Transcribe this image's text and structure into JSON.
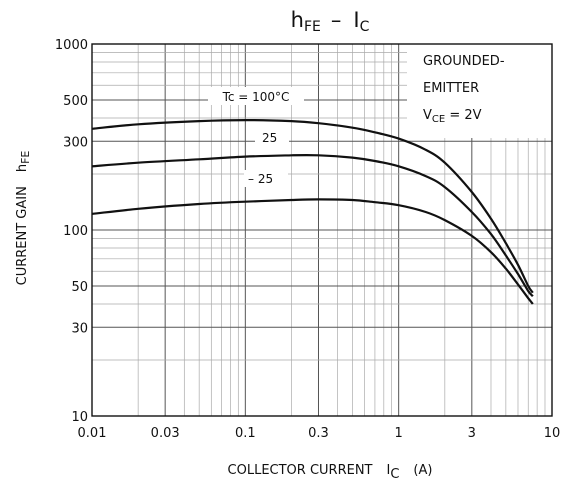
{
  "chart_data": {
    "type": "line",
    "title": {
      "main": "h",
      "main_sub": "FE",
      "sep": "–",
      "var": "I",
      "var_sub": "C"
    },
    "xlabel": {
      "pre": "COLLECTOR CURRENT",
      "var": "I",
      "var_sub": "C",
      "unit": "(A)"
    },
    "ylabel": {
      "pre": "CURRENT GAIN",
      "var": "h",
      "var_sub": "FE"
    },
    "x_scale": "log",
    "y_scale": "log",
    "xlim": [
      0.01,
      10
    ],
    "ylim": [
      10,
      1000
    ],
    "x_ticks": [
      {
        "v": 0.01,
        "label": "0.01"
      },
      {
        "v": 0.03,
        "label": "0.03"
      },
      {
        "v": 0.1,
        "label": "0.1"
      },
      {
        "v": 0.3,
        "label": "0.3"
      },
      {
        "v": 1,
        "label": "1"
      },
      {
        "v": 3,
        "label": "3"
      },
      {
        "v": 10,
        "label": "10"
      }
    ],
    "y_ticks": [
      {
        "v": 10,
        "label": "10"
      },
      {
        "v": 30,
        "label": "30"
      },
      {
        "v": 50,
        "label": "50"
      },
      {
        "v": 100,
        "label": "100"
      },
      {
        "v": 300,
        "label": "300"
      },
      {
        "v": 500,
        "label": "500"
      },
      {
        "v": 1000,
        "label": "1000"
      }
    ],
    "grid": true,
    "conditions": {
      "line1": "GROUNDED-",
      "line2": "EMITTER",
      "v_var": "V",
      "v_sub": "CE",
      "v_val": " = 2V"
    },
    "series": [
      {
        "name": "Tc = 100°C",
        "x": [
          0.01,
          0.02,
          0.05,
          0.1,
          0.2,
          0.3,
          0.5,
          0.7,
          1,
          1.5,
          2,
          3,
          4,
          5,
          6,
          7,
          7.5
        ],
        "values": [
          350,
          370,
          385,
          390,
          385,
          375,
          355,
          335,
          310,
          270,
          230,
          160,
          115,
          85,
          65,
          50,
          46
        ]
      },
      {
        "name": "25",
        "x": [
          0.01,
          0.02,
          0.05,
          0.1,
          0.2,
          0.3,
          0.5,
          0.7,
          1,
          1.5,
          2,
          3,
          4,
          5,
          6,
          7,
          7.5
        ],
        "values": [
          220,
          230,
          240,
          248,
          252,
          252,
          245,
          235,
          220,
          195,
          170,
          125,
          95,
          73,
          58,
          47,
          44
        ]
      },
      {
        "name": "-25",
        "x": [
          0.01,
          0.02,
          0.05,
          0.1,
          0.2,
          0.3,
          0.5,
          0.7,
          1,
          1.5,
          2,
          3,
          4,
          5,
          6,
          7,
          7.5
        ],
        "values": [
          122,
          130,
          138,
          142,
          145,
          146,
          145,
          141,
          136,
          125,
          113,
          93,
          76,
          62,
          51,
          43,
          40
        ]
      }
    ],
    "annotations": [
      {
        "text": "Tc = 100°C"
      },
      {
        "text": "25"
      },
      {
        "text": "– 25"
      }
    ]
  }
}
